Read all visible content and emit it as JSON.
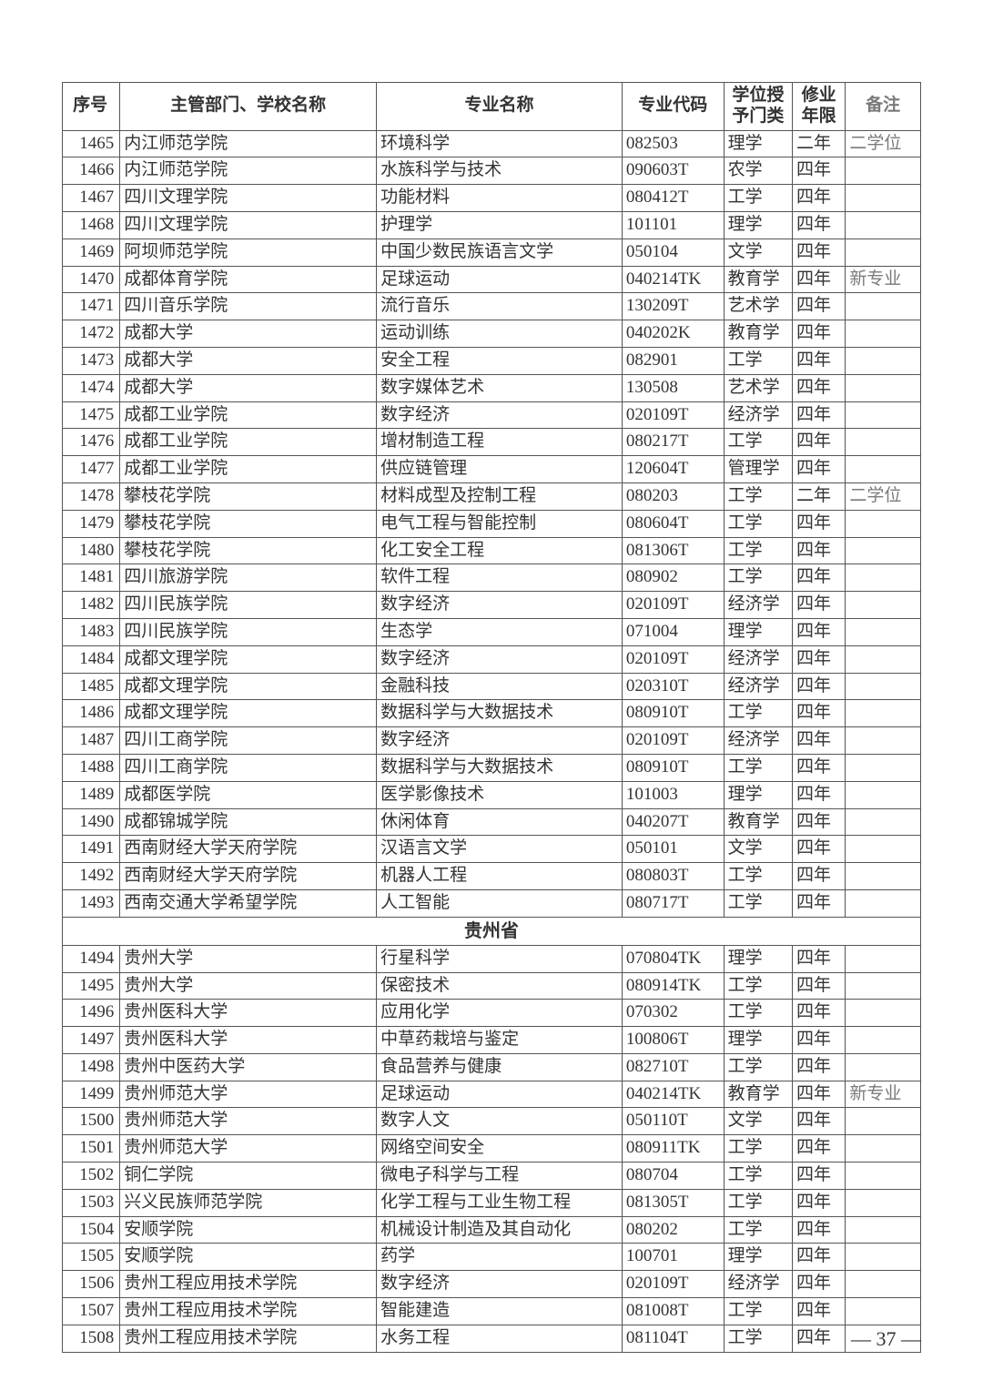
{
  "headers": {
    "id": "序号",
    "school": "主管部门、学校名称",
    "major": "专业名称",
    "code": "专业代码",
    "degree": "学位授予门类",
    "years": "修业年限",
    "note": "备注"
  },
  "section_divider": "贵州省",
  "page_number": "— 37 —",
  "rows_part1": [
    {
      "id": "1465",
      "school": "内江师范学院",
      "major": "环境科学",
      "code": "082503",
      "degree": "理学",
      "years": "二年",
      "note": "二学位"
    },
    {
      "id": "1466",
      "school": "内江师范学院",
      "major": "水族科学与技术",
      "code": "090603T",
      "degree": "农学",
      "years": "四年",
      "note": ""
    },
    {
      "id": "1467",
      "school": "四川文理学院",
      "major": "功能材料",
      "code": "080412T",
      "degree": "工学",
      "years": "四年",
      "note": ""
    },
    {
      "id": "1468",
      "school": "四川文理学院",
      "major": "护理学",
      "code": "101101",
      "degree": "理学",
      "years": "四年",
      "note": ""
    },
    {
      "id": "1469",
      "school": "阿坝师范学院",
      "major": "中国少数民族语言文学",
      "code": "050104",
      "degree": "文学",
      "years": "四年",
      "note": ""
    },
    {
      "id": "1470",
      "school": "成都体育学院",
      "major": "足球运动",
      "code": "040214TK",
      "degree": "教育学",
      "years": "四年",
      "note": "新专业"
    },
    {
      "id": "1471",
      "school": "四川音乐学院",
      "major": "流行音乐",
      "code": "130209T",
      "degree": "艺术学",
      "years": "四年",
      "note": ""
    },
    {
      "id": "1472",
      "school": "成都大学",
      "major": "运动训练",
      "code": "040202K",
      "degree": "教育学",
      "years": "四年",
      "note": ""
    },
    {
      "id": "1473",
      "school": "成都大学",
      "major": "安全工程",
      "code": "082901",
      "degree": "工学",
      "years": "四年",
      "note": ""
    },
    {
      "id": "1474",
      "school": "成都大学",
      "major": "数字媒体艺术",
      "code": "130508",
      "degree": "艺术学",
      "years": "四年",
      "note": ""
    },
    {
      "id": "1475",
      "school": "成都工业学院",
      "major": "数字经济",
      "code": "020109T",
      "degree": "经济学",
      "years": "四年",
      "note": ""
    },
    {
      "id": "1476",
      "school": "成都工业学院",
      "major": "增材制造工程",
      "code": "080217T",
      "degree": "工学",
      "years": "四年",
      "note": ""
    },
    {
      "id": "1477",
      "school": "成都工业学院",
      "major": "供应链管理",
      "code": "120604T",
      "degree": "管理学",
      "years": "四年",
      "note": ""
    },
    {
      "id": "1478",
      "school": "攀枝花学院",
      "major": "材料成型及控制工程",
      "code": "080203",
      "degree": "工学",
      "years": "二年",
      "note": "二学位"
    },
    {
      "id": "1479",
      "school": "攀枝花学院",
      "major": "电气工程与智能控制",
      "code": "080604T",
      "degree": "工学",
      "years": "四年",
      "note": ""
    },
    {
      "id": "1480",
      "school": "攀枝花学院",
      "major": "化工安全工程",
      "code": "081306T",
      "degree": "工学",
      "years": "四年",
      "note": ""
    },
    {
      "id": "1481",
      "school": "四川旅游学院",
      "major": "软件工程",
      "code": "080902",
      "degree": "工学",
      "years": "四年",
      "note": ""
    },
    {
      "id": "1482",
      "school": "四川民族学院",
      "major": "数字经济",
      "code": "020109T",
      "degree": "经济学",
      "years": "四年",
      "note": ""
    },
    {
      "id": "1483",
      "school": "四川民族学院",
      "major": "生态学",
      "code": "071004",
      "degree": "理学",
      "years": "四年",
      "note": ""
    },
    {
      "id": "1484",
      "school": "成都文理学院",
      "major": "数字经济",
      "code": "020109T",
      "degree": "经济学",
      "years": "四年",
      "note": ""
    },
    {
      "id": "1485",
      "school": "成都文理学院",
      "major": "金融科技",
      "code": "020310T",
      "degree": "经济学",
      "years": "四年",
      "note": ""
    },
    {
      "id": "1486",
      "school": "成都文理学院",
      "major": "数据科学与大数据技术",
      "code": "080910T",
      "degree": "工学",
      "years": "四年",
      "note": ""
    },
    {
      "id": "1487",
      "school": "四川工商学院",
      "major": "数字经济",
      "code": "020109T",
      "degree": "经济学",
      "years": "四年",
      "note": ""
    },
    {
      "id": "1488",
      "school": "四川工商学院",
      "major": "数据科学与大数据技术",
      "code": "080910T",
      "degree": "工学",
      "years": "四年",
      "note": ""
    },
    {
      "id": "1489",
      "school": "成都医学院",
      "major": "医学影像技术",
      "code": "101003",
      "degree": "理学",
      "years": "四年",
      "note": ""
    },
    {
      "id": "1490",
      "school": "成都锦城学院",
      "major": "休闲体育",
      "code": "040207T",
      "degree": "教育学",
      "years": "四年",
      "note": ""
    },
    {
      "id": "1491",
      "school": "西南财经大学天府学院",
      "major": "汉语言文学",
      "code": "050101",
      "degree": "文学",
      "years": "四年",
      "note": ""
    },
    {
      "id": "1492",
      "school": "西南财经大学天府学院",
      "major": "机器人工程",
      "code": "080803T",
      "degree": "工学",
      "years": "四年",
      "note": ""
    },
    {
      "id": "1493",
      "school": "西南交通大学希望学院",
      "major": "人工智能",
      "code": "080717T",
      "degree": "工学",
      "years": "四年",
      "note": ""
    }
  ],
  "rows_part2": [
    {
      "id": "1494",
      "school": "贵州大学",
      "major": "行星科学",
      "code": "070804TK",
      "degree": "理学",
      "years": "四年",
      "note": ""
    },
    {
      "id": "1495",
      "school": "贵州大学",
      "major": "保密技术",
      "code": "080914TK",
      "degree": "工学",
      "years": "四年",
      "note": ""
    },
    {
      "id": "1496",
      "school": "贵州医科大学",
      "major": "应用化学",
      "code": "070302",
      "degree": "工学",
      "years": "四年",
      "note": ""
    },
    {
      "id": "1497",
      "school": "贵州医科大学",
      "major": "中草药栽培与鉴定",
      "code": "100806T",
      "degree": "理学",
      "years": "四年",
      "note": ""
    },
    {
      "id": "1498",
      "school": "贵州中医药大学",
      "major": "食品营养与健康",
      "code": "082710T",
      "degree": "工学",
      "years": "四年",
      "note": ""
    },
    {
      "id": "1499",
      "school": "贵州师范大学",
      "major": "足球运动",
      "code": "040214TK",
      "degree": "教育学",
      "years": "四年",
      "note": "新专业"
    },
    {
      "id": "1500",
      "school": "贵州师范大学",
      "major": "数字人文",
      "code": "050110T",
      "degree": "文学",
      "years": "四年",
      "note": ""
    },
    {
      "id": "1501",
      "school": "贵州师范大学",
      "major": "网络空间安全",
      "code": "080911TK",
      "degree": "工学",
      "years": "四年",
      "note": ""
    },
    {
      "id": "1502",
      "school": "铜仁学院",
      "major": "微电子科学与工程",
      "code": "080704",
      "degree": "工学",
      "years": "四年",
      "note": ""
    },
    {
      "id": "1503",
      "school": "兴义民族师范学院",
      "major": "化学工程与工业生物工程",
      "code": "081305T",
      "degree": "工学",
      "years": "四年",
      "note": ""
    },
    {
      "id": "1504",
      "school": "安顺学院",
      "major": "机械设计制造及其自动化",
      "code": "080202",
      "degree": "工学",
      "years": "四年",
      "note": ""
    },
    {
      "id": "1505",
      "school": "安顺学院",
      "major": "药学",
      "code": "100701",
      "degree": "理学",
      "years": "四年",
      "note": ""
    },
    {
      "id": "1506",
      "school": "贵州工程应用技术学院",
      "major": "数字经济",
      "code": "020109T",
      "degree": "经济学",
      "years": "四年",
      "note": ""
    },
    {
      "id": "1507",
      "school": "贵州工程应用技术学院",
      "major": "智能建造",
      "code": "081008T",
      "degree": "工学",
      "years": "四年",
      "note": ""
    },
    {
      "id": "1508",
      "school": "贵州工程应用技术学院",
      "major": "水务工程",
      "code": "081104T",
      "degree": "工学",
      "years": "四年",
      "note": ""
    }
  ]
}
